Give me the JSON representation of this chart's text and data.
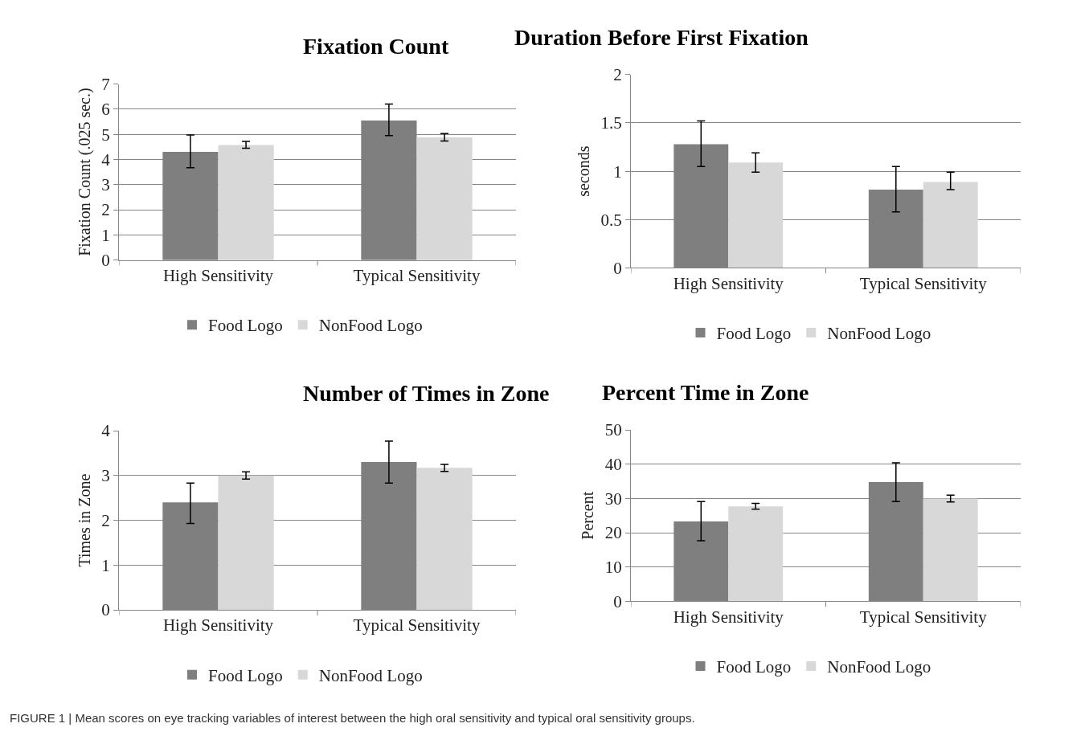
{
  "chart_data": [
    {
      "type": "bar",
      "title": "Fixation Count",
      "ylabel": "Fixation Count (.025 sec.)",
      "categories": [
        "High Sensitivity",
        "Typical Sensitivity"
      ],
      "ylim": [
        0,
        7
      ],
      "yticks": [
        0,
        1,
        2,
        3,
        4,
        5,
        6,
        7
      ],
      "grid": "y",
      "legend": "bottom",
      "series": [
        {
          "name": "Food Logo",
          "color": "#7f7f7f",
          "values": [
            4.3,
            5.55
          ],
          "errors": [
            [
              3.67,
              4.97
            ],
            [
              4.95,
              6.2
            ]
          ]
        },
        {
          "name": "NonFood Logo",
          "color": "#d8d8d8",
          "values": [
            4.57,
            4.88
          ],
          "errors": [
            [
              4.45,
              4.72
            ],
            [
              4.73,
              5.03
            ]
          ]
        }
      ]
    },
    {
      "type": "bar",
      "title": "Duration Before First Fixation",
      "ylabel": "seconds",
      "categories": [
        "High Sensitivity",
        "Typical Sensitivity"
      ],
      "ylim": [
        0,
        2
      ],
      "yticks": [
        0,
        0.5,
        1,
        1.5,
        2
      ],
      "grid": "y",
      "legend": "bottom",
      "series": [
        {
          "name": "Food Logo",
          "color": "#7f7f7f",
          "values": [
            1.28,
            0.81
          ],
          "errors": [
            [
              1.05,
              1.52
            ],
            [
              0.58,
              1.05
            ]
          ]
        },
        {
          "name": "NonFood Logo",
          "color": "#d8d8d8",
          "values": [
            1.09,
            0.89
          ],
          "errors": [
            [
              0.99,
              1.19
            ],
            [
              0.81,
              0.99
            ]
          ]
        }
      ]
    },
    {
      "type": "bar",
      "title": "Number of Times in Zone",
      "ylabel": "Times in Zone",
      "categories": [
        "High Sensitivity",
        "Typical Sensitivity"
      ],
      "ylim": [
        0,
        4
      ],
      "yticks": [
        0,
        1,
        2,
        3,
        4
      ],
      "grid": "y",
      "legend": "bottom",
      "series": [
        {
          "name": "Food Logo",
          "color": "#7f7f7f",
          "values": [
            2.4,
            3.3
          ],
          "errors": [
            [
              1.93,
              2.83
            ],
            [
              2.83,
              3.77
            ]
          ]
        },
        {
          "name": "NonFood Logo",
          "color": "#d8d8d8",
          "values": [
            3.0,
            3.17
          ],
          "errors": [
            [
              2.92,
              3.08
            ],
            [
              3.09,
              3.25
            ]
          ]
        }
      ]
    },
    {
      "type": "bar",
      "title": "Percent Time in Zone",
      "ylabel": "Percent",
      "categories": [
        "High Sensitivity",
        "Typical Sensitivity"
      ],
      "ylim": [
        0,
        50
      ],
      "yticks": [
        0,
        10,
        20,
        30,
        40,
        50
      ],
      "grid": "y",
      "legend": "bottom",
      "annotations": [
        "FIGURE 1 | Mean scores on eye tracking variables of interest between the high oral sensitivity and typical oral sensitivity groups."
      ],
      "series": [
        {
          "name": "Food Logo",
          "color": "#7f7f7f",
          "values": [
            23.3,
            34.8
          ],
          "errors": [
            [
              17.7,
              29.1
            ],
            [
              29.1,
              40.4
            ]
          ]
        },
        {
          "name": "NonFood Logo",
          "color": "#d8d8d8",
          "values": [
            27.7,
            30.0
          ],
          "errors": [
            [
              26.9,
              28.6
            ],
            [
              29.0,
              31.0
            ]
          ]
        }
      ]
    }
  ]
}
